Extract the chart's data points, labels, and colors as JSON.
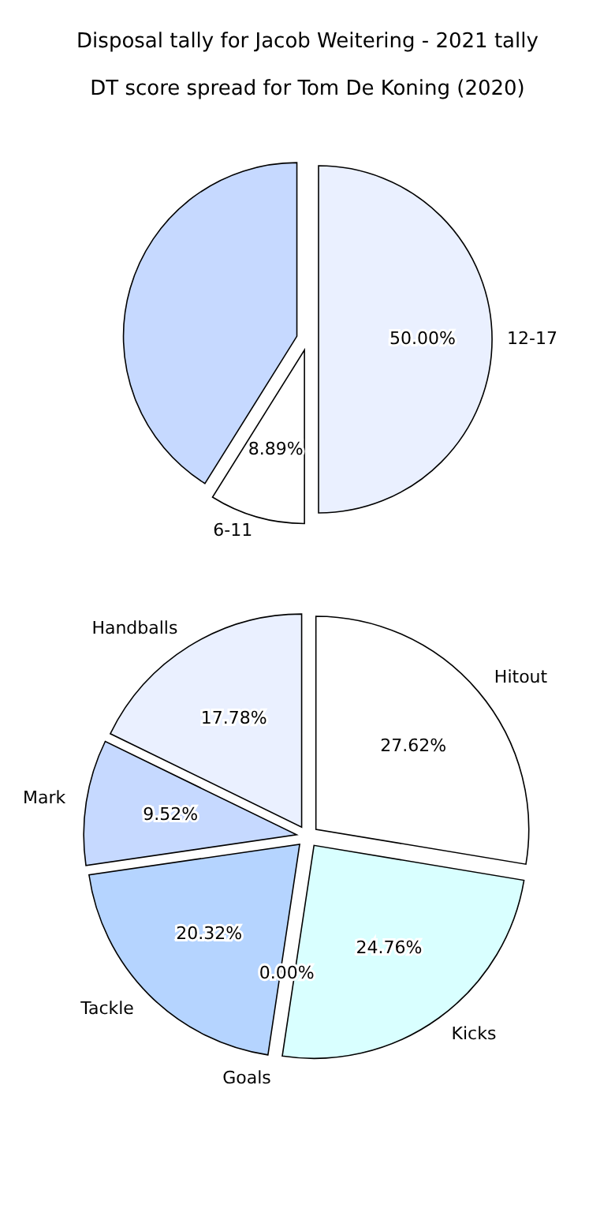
{
  "chart_data": [
    {
      "type": "pie",
      "title": "Disposal tally for Jacob Weitering - 2021 tally",
      "categories": [
        "Hitout",
        "Kicks",
        "Goals",
        "Tackle",
        "Mark",
        "Handballs"
      ],
      "values": [
        27.62,
        24.76,
        0,
        20.32,
        9.52,
        17.78
      ],
      "value_labels": [
        "27.62%",
        "24.76%",
        "0.00%",
        "20.32%",
        "9.52%",
        "17.78%"
      ],
      "colors": [
        "#ffffff",
        "#d9ffff",
        null,
        "#b5d4ff",
        "#c6d9ff",
        "#eaf0ff"
      ]
    },
    {
      "type": "pie",
      "title": "DT score spread for Tom De Koning (2020)",
      "categories": [
        "12-17",
        "6-11",
        null
      ],
      "values": [
        50,
        8.89,
        41.11
      ],
      "value_labels": [
        "50.00%",
        "8.89%",
        null
      ],
      "colors": [
        "#eaf0ff",
        "#ffffff",
        "#c6d9ff"
      ]
    }
  ]
}
